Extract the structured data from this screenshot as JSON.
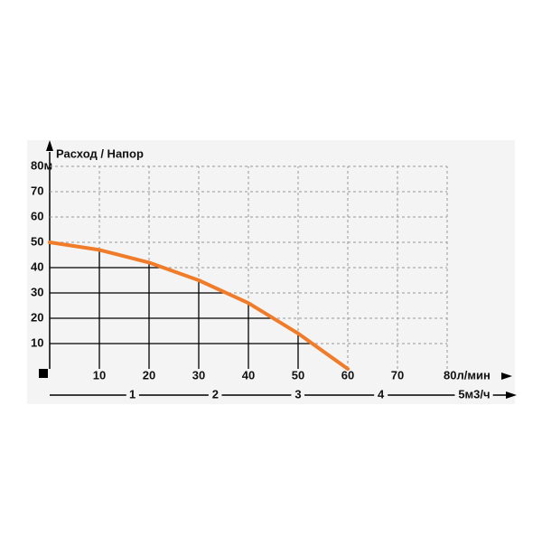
{
  "chart_data": {
    "type": "line",
    "title": "Расход / Напор",
    "x": [
      0,
      10,
      20,
      30,
      40,
      50,
      60
    ],
    "series": [
      {
        "color": "#f07c2a",
        "values": [
          50,
          47,
          42,
          35,
          26,
          14,
          0
        ]
      }
    ],
    "xlim": [
      0,
      80
    ],
    "ylim": [
      0,
      80
    ],
    "xticks": [
      10,
      20,
      30,
      40,
      50,
      60,
      70,
      {
        "value": 80,
        "label": "80л/мин"
      }
    ],
    "yticks": [
      10,
      20,
      30,
      40,
      50,
      60,
      70,
      {
        "value": 80,
        "label": "80м"
      }
    ],
    "x2lim": [
      0,
      4.8
    ],
    "x2ticks": [
      1,
      2,
      3,
      4,
      {
        "value": 5,
        "label": "5м3/ч"
      }
    ],
    "grid": true
  }
}
